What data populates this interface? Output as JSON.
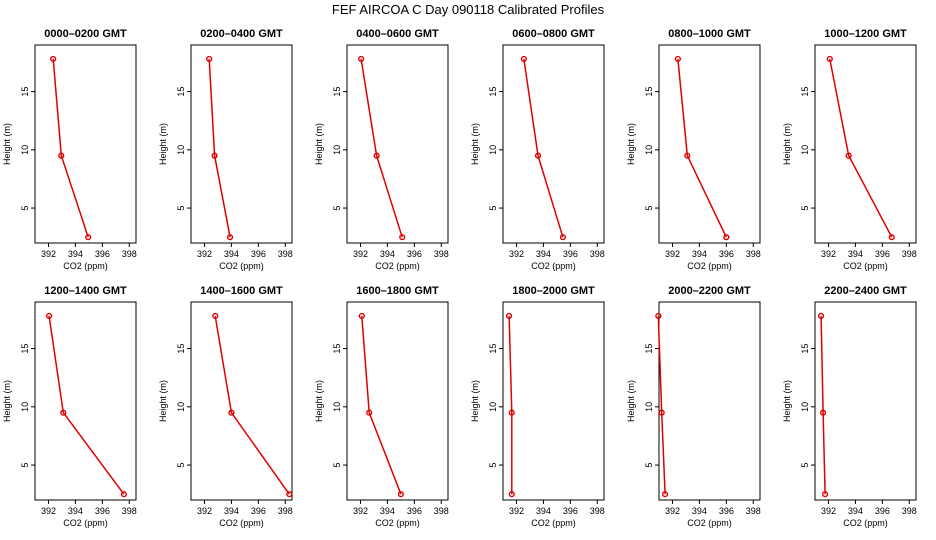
{
  "figure": {
    "title": "FEF AIRCOA C  Day 090118  Calibrated Profiles",
    "line_color": "#e00000",
    "axis_color": "#000000"
  },
  "chart_data": [
    {
      "type": "line",
      "title": "0000–0200 GMT",
      "xlabel": "CO2 (ppm)",
      "ylabel": "Height (m)",
      "xlim": [
        391,
        398.5
      ],
      "ylim": [
        2,
        19
      ],
      "xticks": [
        392,
        394,
        396,
        398
      ],
      "yticks": [
        5,
        10,
        15
      ],
      "series": [
        {
          "x": [
            394.95,
            392.95,
            392.35
          ],
          "y": [
            2.5,
            9.5,
            17.8
          ]
        }
      ]
    },
    {
      "type": "line",
      "title": "0200–0400 GMT",
      "xlabel": "CO2 (ppm)",
      "ylabel": "Height (m)",
      "xlim": [
        391,
        398.5
      ],
      "ylim": [
        2,
        19
      ],
      "xticks": [
        392,
        394,
        396,
        398
      ],
      "yticks": [
        5,
        10,
        15
      ],
      "series": [
        {
          "x": [
            393.9,
            392.75,
            392.35
          ],
          "y": [
            2.5,
            9.5,
            17.8
          ]
        }
      ]
    },
    {
      "type": "line",
      "title": "0400–0600 GMT",
      "xlabel": "CO2 (ppm)",
      "ylabel": "Height (m)",
      "xlim": [
        391,
        398.5
      ],
      "ylim": [
        2,
        19
      ],
      "xticks": [
        392,
        394,
        396,
        398
      ],
      "yticks": [
        5,
        10,
        15
      ],
      "series": [
        {
          "x": [
            395.1,
            393.2,
            392.05
          ],
          "y": [
            2.5,
            9.5,
            17.8
          ]
        }
      ]
    },
    {
      "type": "line",
      "title": "0600–0800 GMT",
      "xlabel": "CO2 (ppm)",
      "ylabel": "Height (m)",
      "xlim": [
        391,
        398.5
      ],
      "ylim": [
        2,
        19
      ],
      "xticks": [
        392,
        394,
        396,
        398
      ],
      "yticks": [
        5,
        10,
        15
      ],
      "series": [
        {
          "x": [
            395.45,
            393.6,
            392.55
          ],
          "y": [
            2.5,
            9.5,
            17.8
          ]
        }
      ]
    },
    {
      "type": "line",
      "title": "0800–1000 GMT",
      "xlabel": "CO2 (ppm)",
      "ylabel": "Height (m)",
      "xlim": [
        391,
        398.5
      ],
      "ylim": [
        2,
        19
      ],
      "xticks": [
        392,
        394,
        396,
        398
      ],
      "yticks": [
        5,
        10,
        15
      ],
      "series": [
        {
          "x": [
            396.0,
            393.1,
            392.4
          ],
          "y": [
            2.5,
            9.5,
            17.8
          ]
        }
      ]
    },
    {
      "type": "line",
      "title": "1000–1200 GMT",
      "xlabel": "CO2 (ppm)",
      "ylabel": "Height (m)",
      "xlim": [
        391,
        398.5
      ],
      "ylim": [
        2,
        19
      ],
      "xticks": [
        392,
        394,
        396,
        398
      ],
      "yticks": [
        5,
        10,
        15
      ],
      "series": [
        {
          "x": [
            396.7,
            393.5,
            392.1
          ],
          "y": [
            2.5,
            9.5,
            17.8
          ]
        }
      ]
    },
    {
      "type": "line",
      "title": "1200–1400 GMT",
      "xlabel": "CO2 (ppm)",
      "ylabel": "Height (m)",
      "xlim": [
        391,
        398.5
      ],
      "ylim": [
        2,
        19
      ],
      "xticks": [
        392,
        394,
        396,
        398
      ],
      "yticks": [
        5,
        10,
        15
      ],
      "series": [
        {
          "x": [
            397.6,
            393.1,
            392.05
          ],
          "y": [
            2.5,
            9.5,
            17.8
          ]
        }
      ]
    },
    {
      "type": "line",
      "title": "1400–1600 GMT",
      "xlabel": "CO2 (ppm)",
      "ylabel": "Height (m)",
      "xlim": [
        391,
        398.5
      ],
      "ylim": [
        2,
        19
      ],
      "xticks": [
        392,
        394,
        396,
        398
      ],
      "yticks": [
        5,
        10,
        15
      ],
      "series": [
        {
          "x": [
            398.3,
            394.0,
            392.8
          ],
          "y": [
            2.5,
            9.5,
            17.8
          ]
        }
      ]
    },
    {
      "type": "line",
      "title": "1600–1800 GMT",
      "xlabel": "CO2 (ppm)",
      "ylabel": "Height (m)",
      "xlim": [
        391,
        398.5
      ],
      "ylim": [
        2,
        19
      ],
      "xticks": [
        392,
        394,
        396,
        398
      ],
      "yticks": [
        5,
        10,
        15
      ],
      "series": [
        {
          "x": [
            395.0,
            392.65,
            392.1
          ],
          "y": [
            2.5,
            9.5,
            17.8
          ]
        }
      ]
    },
    {
      "type": "line",
      "title": "1800–2000 GMT",
      "xlabel": "CO2 (ppm)",
      "ylabel": "Height (m)",
      "xlim": [
        391,
        398.5
      ],
      "ylim": [
        2,
        19
      ],
      "xticks": [
        392,
        394,
        396,
        398
      ],
      "yticks": [
        5,
        10,
        15
      ],
      "series": [
        {
          "x": [
            391.65,
            391.65,
            391.45
          ],
          "y": [
            2.5,
            9.5,
            17.8
          ]
        }
      ]
    },
    {
      "type": "line",
      "title": "2000–2200 GMT",
      "xlabel": "CO2 (ppm)",
      "ylabel": "Height (m)",
      "xlim": [
        391,
        398.5
      ],
      "ylim": [
        2,
        19
      ],
      "xticks": [
        392,
        394,
        396,
        398
      ],
      "yticks": [
        5,
        10,
        15
      ],
      "series": [
        {
          "x": [
            391.45,
            391.2,
            390.95
          ],
          "y": [
            2.5,
            9.5,
            17.8
          ]
        }
      ]
    },
    {
      "type": "line",
      "title": "2200–2400 GMT",
      "xlabel": "CO2 (ppm)",
      "ylabel": "Height (m)",
      "xlim": [
        391,
        398.5
      ],
      "ylim": [
        2,
        19
      ],
      "xticks": [
        392,
        394,
        396,
        398
      ],
      "yticks": [
        5,
        10,
        15
      ],
      "series": [
        {
          "x": [
            391.75,
            391.6,
            391.45
          ],
          "y": [
            2.5,
            9.5,
            17.8
          ]
        }
      ]
    }
  ]
}
